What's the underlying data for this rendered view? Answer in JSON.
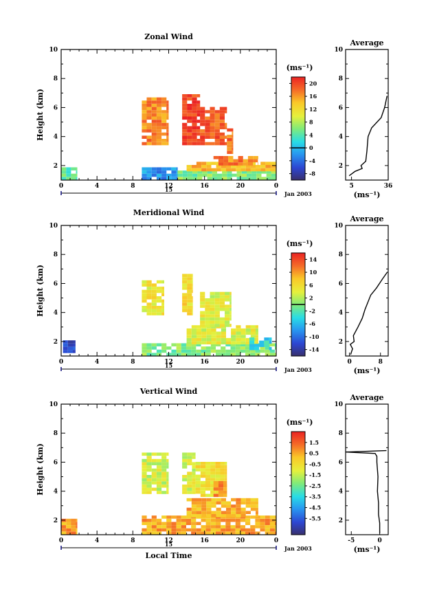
{
  "chart_data": [
    {
      "type": "heatmap",
      "title": "Zonal Wind",
      "ylabel": "Height (km)",
      "xlabel": "",
      "xlim": [
        0,
        24
      ],
      "ylim": [
        1,
        10
      ],
      "x_ticks": [
        "0",
        "4",
        "8",
        "12",
        "16",
        "20",
        "0"
      ],
      "y_ticks": [
        "2",
        "4",
        "6",
        "8",
        "10"
      ],
      "date_center": "15",
      "date_label": "Jan 2003",
      "colorbar": {
        "units": "(ms⁻¹)",
        "range": [
          -10,
          22
        ],
        "ticks": [
          "20",
          "16",
          "12",
          "8",
          "4",
          "0",
          "-4",
          "-8"
        ],
        "tick_values": [
          20,
          16,
          12,
          8,
          4,
          0,
          -4,
          -8
        ],
        "marker": 0
      },
      "regions": [
        {
          "x": [
            0,
            1.8
          ],
          "y": [
            1.0,
            1.8
          ],
          "value": 4
        },
        {
          "x": [
            9,
            13
          ],
          "y": [
            1.0,
            1.8
          ],
          "value": -2
        },
        {
          "x": [
            13,
            24
          ],
          "y": [
            1.0,
            1.6
          ],
          "value": 6
        },
        {
          "x": [
            14,
            24
          ],
          "y": [
            1.6,
            2.2
          ],
          "value": 14
        },
        {
          "x": [
            17,
            22
          ],
          "y": [
            2.0,
            2.6
          ],
          "value": 17
        },
        {
          "x": [
            9,
            12
          ],
          "y": [
            3.4,
            6.6
          ],
          "value": 17
        },
        {
          "x": [
            13.5,
            15.5
          ],
          "y": [
            3.4,
            6.8
          ],
          "value": 20
        },
        {
          "x": [
            15.5,
            18.5
          ],
          "y": [
            3.4,
            6.0
          ],
          "value": 19
        },
        {
          "x": [
            18.5,
            19.2
          ],
          "y": [
            2.8,
            4.5
          ],
          "value": 18
        }
      ],
      "average": {
        "title": "Average",
        "xlim": [
          0,
          36
        ],
        "x_ticks": [
          5,
          36
        ],
        "xlabel": "(ms⁻¹)",
        "profile": [
          [
            3,
            1.3
          ],
          [
            8,
            1.6
          ],
          [
            14,
            1.8
          ],
          [
            13,
            2.0
          ],
          [
            17,
            2.3
          ],
          [
            18,
            3.0
          ],
          [
            19,
            4.0
          ],
          [
            22,
            4.6
          ],
          [
            30,
            5.3
          ],
          [
            33,
            6.0
          ],
          [
            35,
            6.8
          ]
        ]
      }
    },
    {
      "type": "heatmap",
      "title": "Meridional Wind",
      "ylabel": "Height (km)",
      "xlabel": "",
      "xlim": [
        0,
        24
      ],
      "ylim": [
        1,
        10
      ],
      "x_ticks": [
        "0",
        "4",
        "8",
        "12",
        "16",
        "20",
        "0"
      ],
      "y_ticks": [
        "2",
        "4",
        "6",
        "8",
        "10"
      ],
      "date_center": "15",
      "date_label": "Jan 2003",
      "colorbar": {
        "units": "(ms⁻¹)",
        "range": [
          -16,
          16
        ],
        "ticks": [
          "14",
          "10",
          "6",
          "2",
          "-2",
          "-6",
          "-10",
          "-14"
        ],
        "tick_values": [
          14,
          10,
          6,
          2,
          -2,
          -6,
          -10,
          -14
        ],
        "marker": 0
      },
      "regions": [
        {
          "x": [
            0.2,
            1.6
          ],
          "y": [
            1.2,
            1.9
          ],
          "value": -12
        },
        {
          "x": [
            9,
            24
          ],
          "y": [
            1.0,
            1.8
          ],
          "value": 0
        },
        {
          "x": [
            14,
            22
          ],
          "y": [
            1.8,
            3.0
          ],
          "value": 4
        },
        {
          "x": [
            21,
            23.5
          ],
          "y": [
            1.4,
            2.2
          ],
          "value": -4
        },
        {
          "x": [
            9,
            11.5
          ],
          "y": [
            3.8,
            6.2
          ],
          "value": 5
        },
        {
          "x": [
            13.5,
            14.7
          ],
          "y": [
            3.8,
            6.5
          ],
          "value": 6
        },
        {
          "x": [
            15.5,
            19
          ],
          "y": [
            3.0,
            5.2
          ],
          "value": 4
        }
      ],
      "average": {
        "title": "Average",
        "xlim": [
          -1,
          10
        ],
        "x_ticks": [
          0,
          8
        ],
        "xlabel": "(ms⁻¹)",
        "profile": [
          [
            0.3,
            1.1
          ],
          [
            0.8,
            1.5
          ],
          [
            0.2,
            1.8
          ],
          [
            1.2,
            2.0
          ],
          [
            1.0,
            2.4
          ],
          [
            2.2,
            3.0
          ],
          [
            3.3,
            3.6
          ],
          [
            4.0,
            4.2
          ],
          [
            5.5,
            5.2
          ],
          [
            7.0,
            5.7
          ],
          [
            8.5,
            6.3
          ],
          [
            9.8,
            6.8
          ]
        ]
      }
    },
    {
      "type": "heatmap",
      "title": "Vertical Wind",
      "ylabel": "Height (km)",
      "xlabel": "Local Time",
      "xlim": [
        0,
        24
      ],
      "ylim": [
        1,
        10
      ],
      "x_ticks": [
        "0",
        "4",
        "8",
        "12",
        "16",
        "20",
        "0"
      ],
      "y_ticks": [
        "2",
        "4",
        "6",
        "8",
        "10"
      ],
      "date_center": "15",
      "date_label": "Jan 2003",
      "colorbar": {
        "units": "(ms⁻¹)",
        "range": [
          -7,
          2.5
        ],
        "ticks": [
          "1.5",
          "0.5",
          "-0.5",
          "-1.5",
          "-2.5",
          "-3.5",
          "-4.5",
          "-5.5"
        ],
        "tick_values": [
          1.5,
          0.5,
          -0.5,
          -1.5,
          -2.5,
          -3.5,
          -4.5,
          -5.5
        ],
        "marker": null
      },
      "regions": [
        {
          "x": [
            0,
            1.8
          ],
          "y": [
            1.0,
            2.0
          ],
          "value": 0.6
        },
        {
          "x": [
            9,
            24
          ],
          "y": [
            1.0,
            2.2
          ],
          "value": 0.5
        },
        {
          "x": [
            14,
            22
          ],
          "y": [
            2.2,
            3.4
          ],
          "value": 0.4
        },
        {
          "x": [
            9,
            12
          ],
          "y": [
            3.8,
            6.6
          ],
          "value": -1.3
        },
        {
          "x": [
            13.5,
            15
          ],
          "y": [
            3.8,
            6.6
          ],
          "value": -1.2
        },
        {
          "x": [
            15,
            18.5
          ],
          "y": [
            3.6,
            6.0
          ],
          "value": -0.6
        },
        {
          "x": [
            17,
            18.5
          ],
          "y": [
            3.6,
            4.6
          ],
          "value": 1.0
        }
      ],
      "average": {
        "title": "Average",
        "xlim": [
          -6,
          1.5
        ],
        "x_ticks": [
          -5,
          0
        ],
        "xlabel": "(ms⁻¹)",
        "profile": [
          [
            0,
            1.1
          ],
          [
            0,
            1.8
          ],
          [
            -0.2,
            2.4
          ],
          [
            -0.2,
            3.2
          ],
          [
            -0.4,
            4.0
          ],
          [
            -0.3,
            5.0
          ],
          [
            -0.5,
            6.0
          ],
          [
            -0.5,
            6.4
          ],
          [
            -0.8,
            6.6
          ],
          [
            -6.0,
            6.7
          ],
          [
            1.2,
            6.8
          ]
        ]
      }
    }
  ]
}
